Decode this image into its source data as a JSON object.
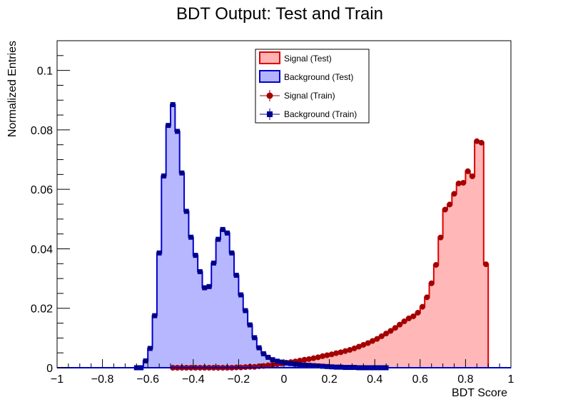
{
  "chart_data": {
    "type": "histogram",
    "title": "BDT Output: Test and Train",
    "xlabel": "BDT Score",
    "ylabel": "Normalized Entries",
    "xlim": [
      -1,
      1
    ],
    "ylim": [
      0,
      0.11
    ],
    "x_major_ticks": [
      -1,
      -0.8,
      -0.6,
      -0.4,
      -0.2,
      0,
      0.2,
      0.4,
      0.6,
      0.8,
      1
    ],
    "x_tick_labels": [
      "−1",
      "−0.8",
      "−0.6",
      "−0.4",
      "−0.2",
      "0",
      "0.2",
      "0.4",
      "0.6",
      "0.8",
      "1"
    ],
    "y_major_ticks": [
      0,
      0.02,
      0.04,
      0.06,
      0.08,
      0.1
    ],
    "y_tick_labels": [
      "0",
      "0.02",
      "0.04",
      "0.06",
      "0.08",
      "0.1"
    ],
    "grid": false,
    "legend_position": "top-center",
    "bin_width": 0.02,
    "bin_centers": [
      -0.99,
      -0.97,
      -0.95,
      -0.93,
      -0.91,
      -0.89,
      -0.87,
      -0.85,
      -0.83,
      -0.81,
      -0.79,
      -0.77,
      -0.75,
      -0.73,
      -0.71,
      -0.69,
      -0.67,
      -0.65,
      -0.63,
      -0.61,
      -0.59,
      -0.57,
      -0.55,
      -0.53,
      -0.51,
      -0.49,
      -0.47,
      -0.45,
      -0.43,
      -0.41,
      -0.39,
      -0.37,
      -0.35,
      -0.33,
      -0.31,
      -0.29,
      -0.27,
      -0.25,
      -0.23,
      -0.21,
      -0.19,
      -0.17,
      -0.15,
      -0.13,
      -0.11,
      -0.09,
      -0.07,
      -0.05,
      -0.03,
      -0.01,
      0.01,
      0.03,
      0.05,
      0.07,
      0.09,
      0.11,
      0.13,
      0.15,
      0.17,
      0.19,
      0.21,
      0.23,
      0.25,
      0.27,
      0.29,
      0.31,
      0.33,
      0.35,
      0.37,
      0.39,
      0.41,
      0.43,
      0.45,
      0.47,
      0.49,
      0.51,
      0.53,
      0.55,
      0.57,
      0.59,
      0.61,
      0.63,
      0.65,
      0.67,
      0.69,
      0.71,
      0.73,
      0.75,
      0.77,
      0.79,
      0.81,
      0.83,
      0.85,
      0.87,
      0.89,
      0.91,
      0.93,
      0.95,
      0.97,
      0.99
    ],
    "series": [
      {
        "name": "Signal (Test)",
        "style": "filled-histogram",
        "line_color": "#e00000",
        "fill_color": "#ffb3b3",
        "values": [
          0,
          0,
          0,
          0,
          0,
          0,
          0,
          0,
          0,
          0,
          0,
          0,
          0,
          0,
          0,
          0,
          0,
          0,
          0,
          0,
          0,
          0,
          0,
          0,
          0,
          0,
          0,
          0,
          0,
          0,
          0,
          0,
          0,
          0,
          0,
          0,
          0,
          0,
          0,
          0.0001,
          0.0001,
          0.0002,
          0.0003,
          0.0003,
          0.0005,
          0.0006,
          0.0008,
          0.001,
          0.0012,
          0.0014,
          0.0017,
          0.0019,
          0.0021,
          0.0024,
          0.0027,
          0.0029,
          0.0032,
          0.0035,
          0.0039,
          0.0042,
          0.0045,
          0.0049,
          0.0052,
          0.0056,
          0.006,
          0.0065,
          0.0071,
          0.0077,
          0.0083,
          0.009,
          0.0097,
          0.0106,
          0.0115,
          0.0124,
          0.0134,
          0.0145,
          0.0156,
          0.0166,
          0.0173,
          0.0185,
          0.0205,
          0.0237,
          0.0284,
          0.0346,
          0.0438,
          0.0532,
          0.0549,
          0.0585,
          0.062,
          0.0622,
          0.0661,
          0.0644,
          0.0762,
          0.0757,
          0.0348,
          0,
          0,
          0,
          0,
          0
        ]
      },
      {
        "name": "Background (Test)",
        "style": "filled-histogram",
        "line_color": "#0000cc",
        "fill_color": "#b3b3ff",
        "values": [
          0,
          0,
          0,
          0,
          0,
          0,
          0,
          0,
          0,
          0,
          0,
          0,
          0,
          0,
          0,
          0,
          0,
          0,
          0,
          0.0023,
          0.0065,
          0.0175,
          0.0386,
          0.0645,
          0.0815,
          0.0885,
          0.0795,
          0.0655,
          0.0526,
          0.0439,
          0.0378,
          0.0323,
          0.0269,
          0.0273,
          0.0352,
          0.0432,
          0.0465,
          0.0453,
          0.0386,
          0.0311,
          0.0245,
          0.0192,
          0.0144,
          0.0101,
          0.0067,
          0.0047,
          0.0035,
          0.0027,
          0.0022,
          0.0019,
          0.0016,
          0.0014,
          0.0012,
          0.001,
          0.0009,
          0.0008,
          0.0007,
          0.0006,
          0.0005,
          0.0004,
          0.0003,
          0.0002,
          0.0002,
          0.0001,
          0.0001,
          0.0001,
          0,
          0,
          0,
          0,
          0,
          0,
          0,
          0,
          0,
          0,
          0,
          0,
          0,
          0,
          0,
          0,
          0,
          0,
          0,
          0,
          0,
          0,
          0,
          0,
          0,
          0,
          0,
          0,
          0,
          0,
          0,
          0,
          0,
          0
        ]
      },
      {
        "name": "Signal (Train)",
        "style": "markers-circle",
        "color": "#a30000",
        "values": [
          0,
          0,
          0,
          0,
          0,
          0,
          0,
          0,
          0,
          0,
          0,
          0,
          0,
          0,
          0,
          0,
          0,
          0,
          0,
          0,
          0,
          0,
          0,
          0,
          0,
          0,
          0,
          0,
          0,
          0,
          0,
          0,
          0,
          0,
          0,
          0,
          0,
          0,
          0,
          0.0001,
          0.0001,
          0.0002,
          0.0003,
          0.0003,
          0.0005,
          0.0006,
          0.0008,
          0.001,
          0.0012,
          0.0014,
          0.0017,
          0.0019,
          0.0021,
          0.0024,
          0.0027,
          0.0029,
          0.0032,
          0.0035,
          0.0039,
          0.0042,
          0.0045,
          0.0049,
          0.0052,
          0.0056,
          0.006,
          0.0065,
          0.0071,
          0.0077,
          0.0083,
          0.009,
          0.0097,
          0.0106,
          0.0115,
          0.0124,
          0.0134,
          0.0145,
          0.0156,
          0.0166,
          0.0173,
          0.0185,
          0.0205,
          0.0237,
          0.0284,
          0.0346,
          0.0438,
          0.0532,
          0.0549,
          0.0585,
          0.062,
          0.0622,
          0.0661,
          0.0644,
          0.0762,
          0.0757,
          0.0348,
          0,
          0,
          0,
          0,
          0
        ]
      },
      {
        "name": "Background (Train)",
        "style": "markers-square",
        "color": "#00008b",
        "values": [
          0,
          0,
          0,
          0,
          0,
          0,
          0,
          0,
          0,
          0,
          0,
          0,
          0,
          0,
          0,
          0,
          0,
          0,
          0,
          0.0023,
          0.0065,
          0.0175,
          0.0386,
          0.0645,
          0.0815,
          0.0885,
          0.0795,
          0.0655,
          0.0526,
          0.0439,
          0.0378,
          0.0323,
          0.0269,
          0.0273,
          0.0352,
          0.0432,
          0.0465,
          0.0453,
          0.0386,
          0.0311,
          0.0245,
          0.0192,
          0.0144,
          0.0101,
          0.0067,
          0.0047,
          0.0035,
          0.0027,
          0.0022,
          0.0019,
          0.0016,
          0.0014,
          0.0012,
          0.001,
          0.0009,
          0.0008,
          0.0007,
          0.0006,
          0.0005,
          0.0004,
          0.0003,
          0.0002,
          0.0002,
          0.0001,
          0.0001,
          0.0001,
          0,
          0,
          0,
          0,
          0,
          0,
          0,
          0,
          0,
          0,
          0,
          0,
          0,
          0,
          0,
          0,
          0,
          0,
          0,
          0,
          0,
          0,
          0,
          0,
          0,
          0,
          0,
          0,
          0,
          0,
          0,
          0,
          0,
          0
        ]
      }
    ]
  }
}
